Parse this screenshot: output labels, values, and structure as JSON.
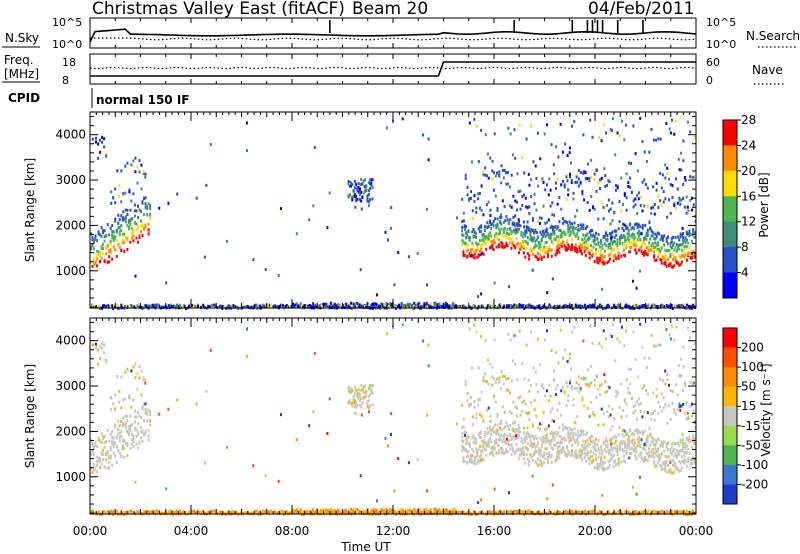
{
  "header": {
    "title": "Christmas Valley East (fitACF)",
    "beam": "Beam 20",
    "date": "04/Feb/2011"
  },
  "params": {
    "nsky_label": "N.Sky",
    "nsearch_label": "N.Search",
    "freq_label": "Freq.",
    "freq_unit": "[MHz]",
    "nave_label": "Nave",
    "cpid_label": "CPID",
    "cpid_value": "normal 150 IF",
    "noise_ticks_left": [
      "10^5",
      "10^0"
    ],
    "noise_ticks_right": [
      "10^5",
      "10^0"
    ],
    "freq_ticks": [
      "18",
      "8"
    ],
    "nave_ticks": [
      "60",
      "0"
    ]
  },
  "chart_data": [
    {
      "type": "heatmap",
      "title": "Power",
      "ylabel": "Slant Range [km]",
      "xlabel": "",
      "ylim": [
        180,
        4500
      ],
      "yticks": [
        "1000",
        "2000",
        "3000",
        "4000"
      ],
      "x_range_hours": [
        0,
        24
      ],
      "colorbar": {
        "label": "Power [dB]",
        "ticks": [
          "4",
          "8",
          "12",
          "16",
          "20",
          "24",
          "28"
        ],
        "colors": [
          "#0000ff",
          "#2850c8",
          "#3c8c78",
          "#50b450",
          "#ffdc00",
          "#ff8c00",
          "#ff0000"
        ]
      }
    },
    {
      "type": "heatmap",
      "title": "Velocity",
      "ylabel": "Slant Range [km]",
      "xlabel": "Time UT",
      "ylim": [
        180,
        4500
      ],
      "yticks": [
        "1000",
        "2000",
        "3000",
        "4000"
      ],
      "x_range_hours": [
        0,
        24
      ],
      "xticks": [
        "00:00",
        "04:00",
        "08:00",
        "12:00",
        "16:00",
        "20:00",
        "00:00"
      ],
      "colorbar": {
        "label": "Velocity [m s⁻¹]",
        "ticks": [
          "200",
          "100",
          "50",
          "15",
          "-15",
          "-50",
          "-100",
          "-200"
        ],
        "colors": [
          "#1e3cc8",
          "#3c78d2",
          "#50b450",
          "#96dc50",
          "#c8c8c0",
          "#ffb400",
          "#ff8c00",
          "#ff5000",
          "#ff0000"
        ]
      }
    }
  ]
}
